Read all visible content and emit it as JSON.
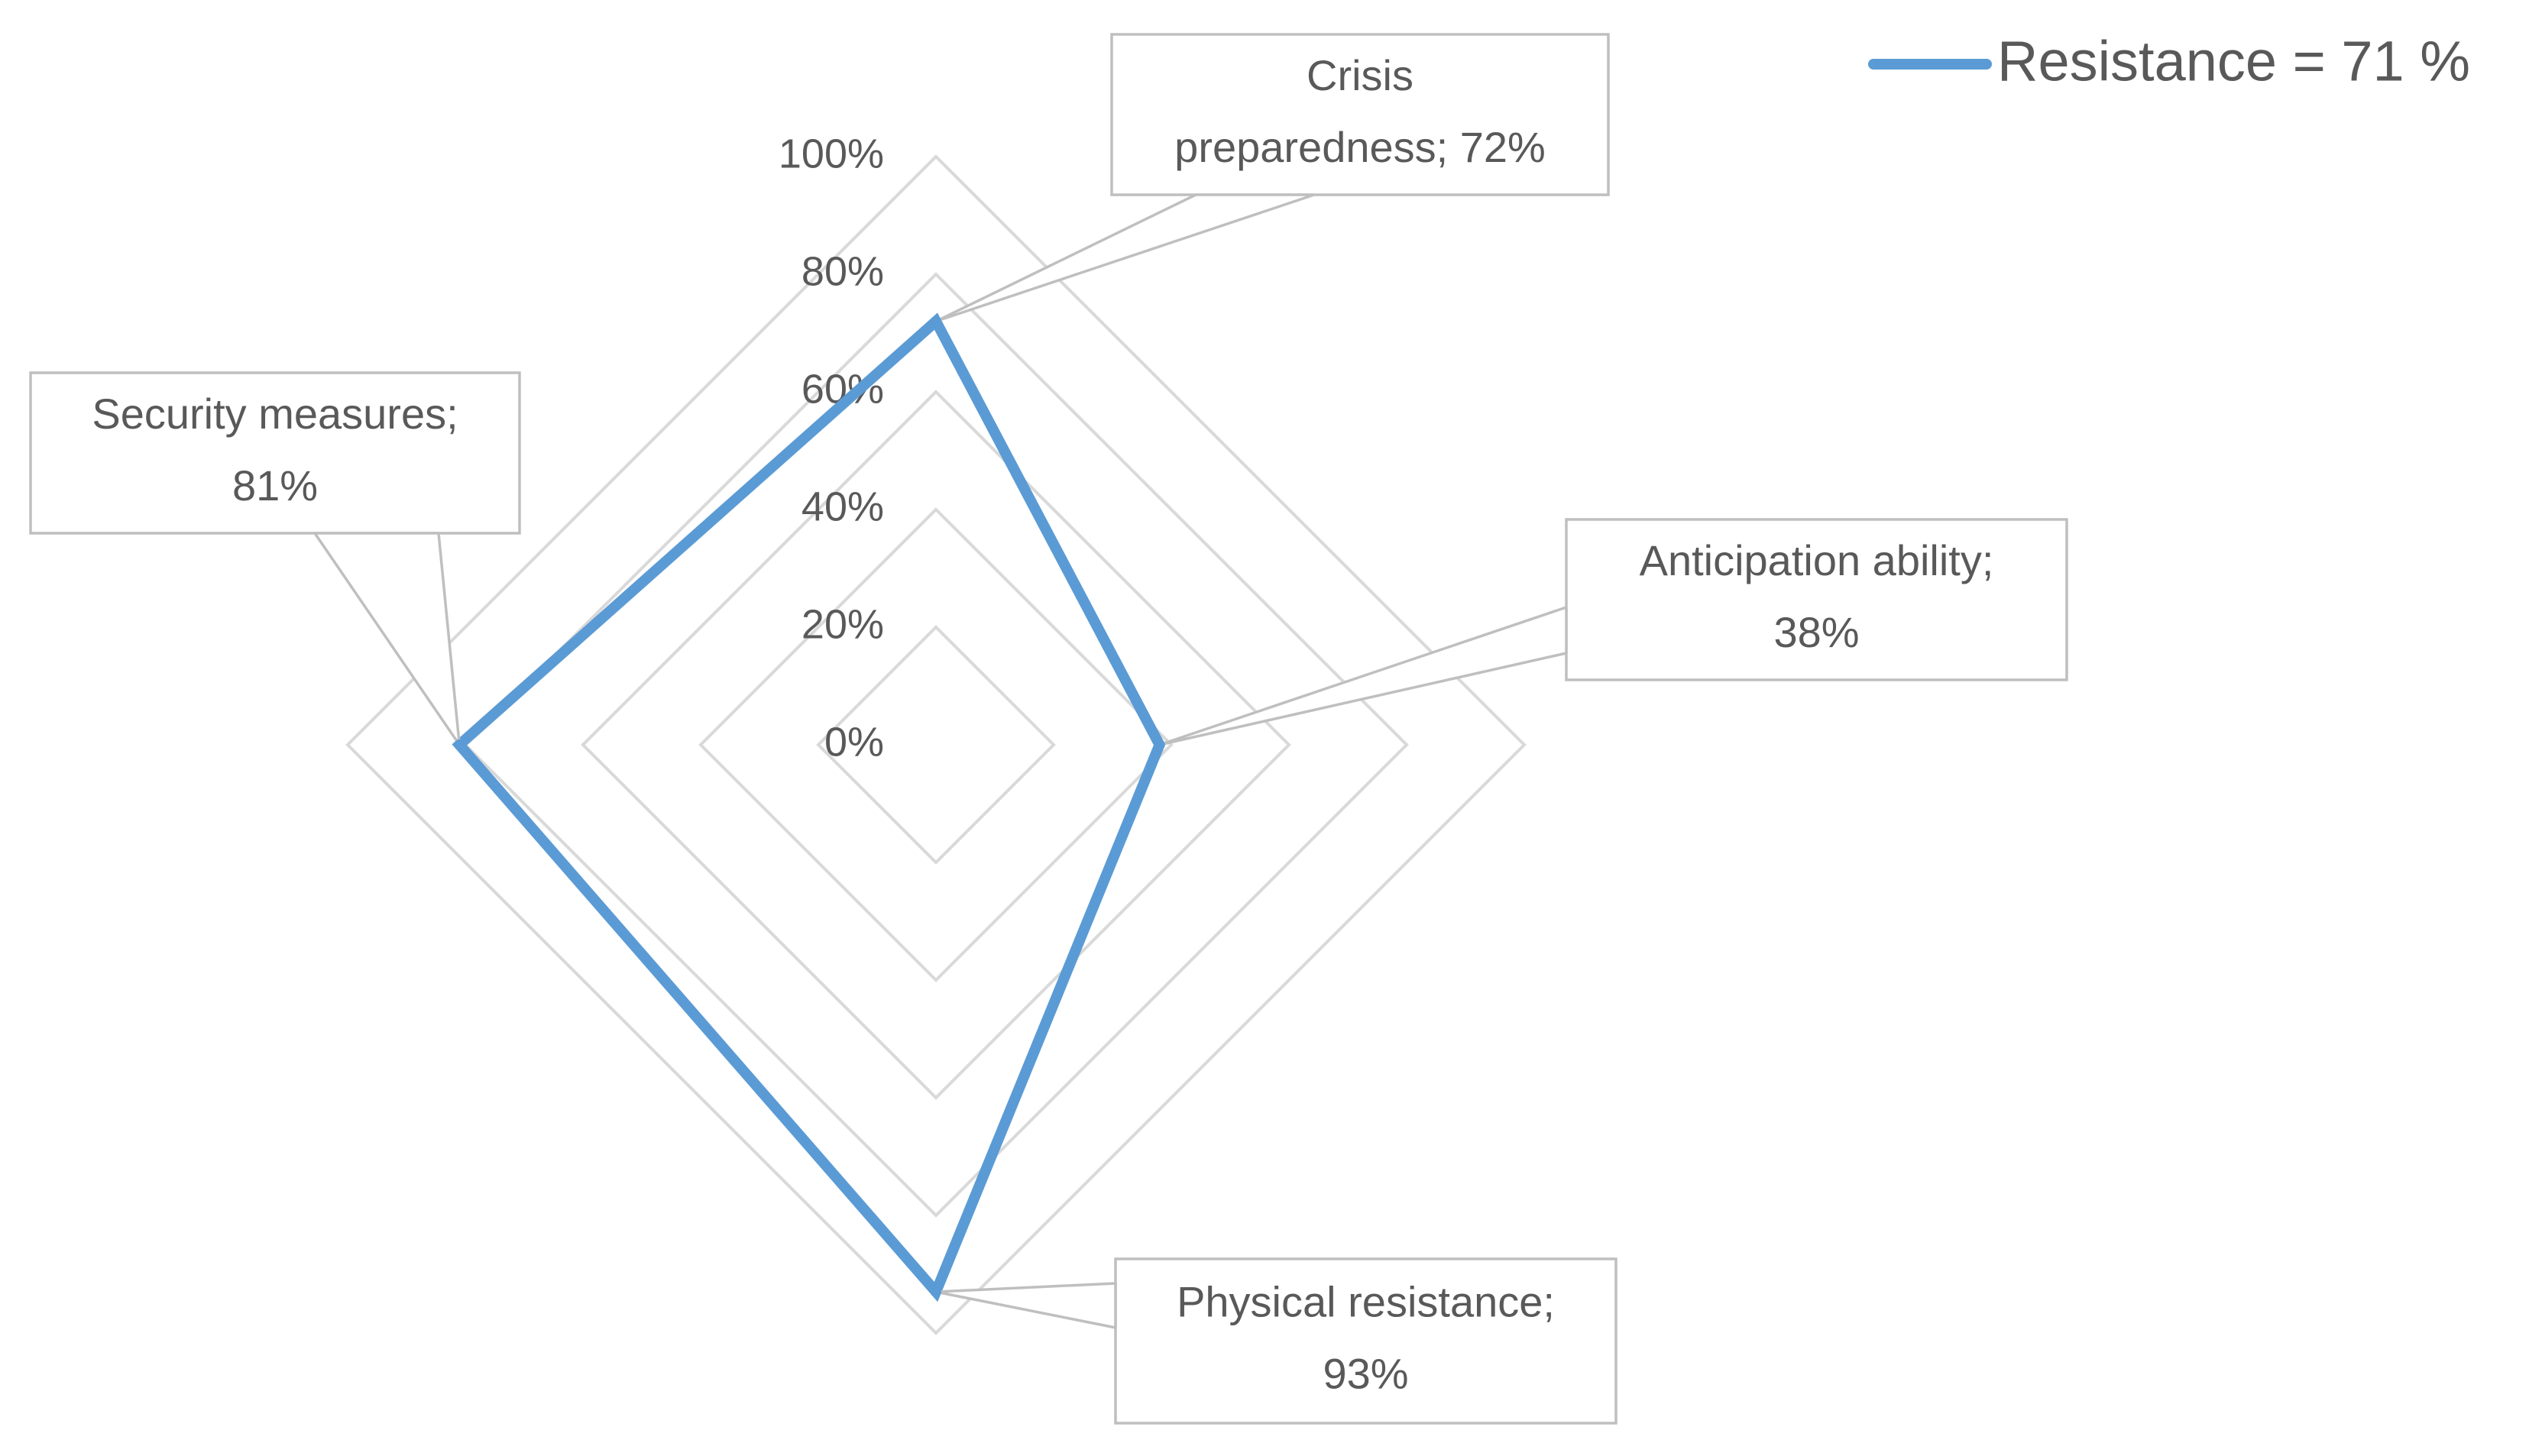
{
  "chart_data": {
    "type": "radar",
    "categories": [
      "Crisis preparedness",
      "Anticipation ability",
      "Physical resistance",
      "Security measures"
    ],
    "series": [
      {
        "name": "Resistance = 71 %",
        "values": [
          72,
          38,
          93,
          81
        ],
        "color": "#5b9bd5"
      }
    ],
    "radial_ticks": [
      "0%",
      "20%",
      "40%",
      "60%",
      "80%",
      "100%"
    ],
    "range": [
      0,
      100
    ],
    "data_labels": [
      {
        "category": "Crisis preparedness",
        "lines": [
          "Crisis",
          "preparedness; 72%"
        ]
      },
      {
        "category": "Anticipation ability",
        "lines": [
          "Anticipation ability;",
          "38%"
        ]
      },
      {
        "category": "Physical resistance",
        "lines": [
          "Physical resistance;",
          "93%"
        ]
      },
      {
        "category": "Security measures",
        "lines": [
          "Security measures;",
          "81%"
        ]
      }
    ],
    "legend": {
      "label": "Resistance = 71 %",
      "position": "top-right"
    },
    "grid": true
  }
}
